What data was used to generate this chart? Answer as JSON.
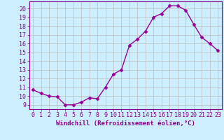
{
  "x": [
    0,
    1,
    2,
    3,
    4,
    5,
    6,
    7,
    8,
    9,
    10,
    11,
    12,
    13,
    14,
    15,
    16,
    17,
    18,
    19,
    20,
    21,
    22,
    23
  ],
  "y": [
    10.7,
    10.3,
    10.0,
    9.9,
    9.0,
    9.0,
    9.3,
    9.8,
    9.7,
    11.0,
    12.5,
    13.0,
    15.8,
    16.5,
    17.4,
    19.0,
    19.4,
    20.3,
    20.3,
    19.8,
    18.2,
    16.7,
    16.0,
    15.2
  ],
  "line_color": "#990099",
  "marker": "D",
  "marker_size": 2.5,
  "bg_color": "#cceeff",
  "grid_color": "#bbbbbb",
  "xlabel": "Windchill (Refroidissement éolien,°C)",
  "ylim_min": 8.5,
  "ylim_max": 20.8,
  "xlim_min": -0.5,
  "xlim_max": 23.5,
  "yticks": [
    9,
    10,
    11,
    12,
    13,
    14,
    15,
    16,
    17,
    18,
    19,
    20
  ],
  "xticks": [
    0,
    1,
    2,
    3,
    4,
    5,
    6,
    7,
    8,
    9,
    10,
    11,
    12,
    13,
    14,
    15,
    16,
    17,
    18,
    19,
    20,
    21,
    22,
    23
  ],
  "tick_color": "#880088",
  "label_color": "#880088",
  "xlabel_fontsize": 6.5,
  "tick_fontsize": 6.0,
  "linewidth": 1.0,
  "spine_color": "#880088"
}
